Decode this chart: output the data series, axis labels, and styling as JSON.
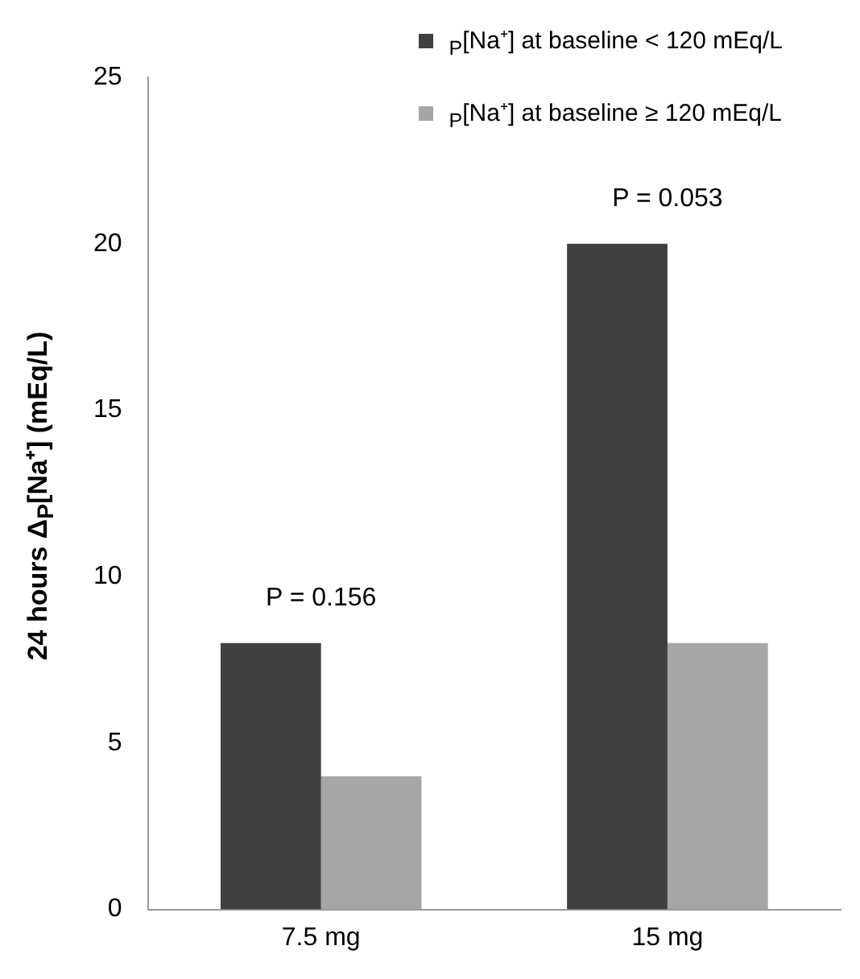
{
  "chart_data": {
    "type": "bar",
    "ylabel": "24 hours Δ$_{P}$[Na⁺] (mEq/L)",
    "categories": [
      "7.5 mg",
      "15 mg"
    ],
    "series": [
      {
        "name": "$_{P}$[Na⁺] at baseline < 120 mEq/L",
        "color": "#404040",
        "values": [
          8,
          20
        ]
      },
      {
        "name": "$_{P}$[Na⁺] at baseline ≥ 120 mEq/L",
        "color": "#a6a6a6",
        "values": [
          4,
          8
        ]
      }
    ],
    "ylim": [
      0,
      25
    ],
    "yticks": [
      0,
      5,
      10,
      15,
      20,
      25
    ],
    "grid": false,
    "legend": "top right",
    "annotations": [
      "P = 0.156",
      "P = 0.053"
    ]
  }
}
